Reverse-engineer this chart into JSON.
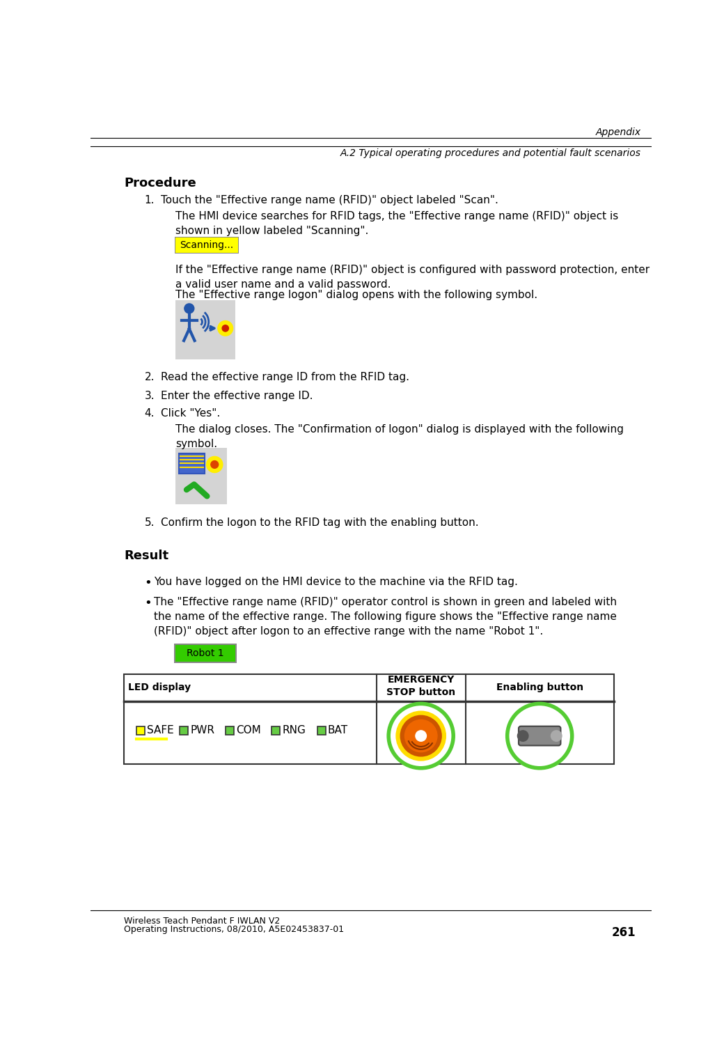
{
  "header_line1": "Appendix",
  "header_line2": "A.2 Typical operating procedures and potential fault scenarios",
  "footer_line1": "Wireless Teach Pendant F IWLAN V2",
  "footer_line2": "Operating Instructions, 08/2010, A5E02453837-01",
  "footer_page": "261",
  "section_procedure": "Procedure",
  "section_result": "Result",
  "step1": "Touch the \"Effective range name (RFID)\" object labeled \"Scan\".",
  "step1_desc": "The HMI device searches for RFID tags, the \"Effective range name (RFID)\" object is\nshown in yellow labeled \"Scanning\".",
  "scanning_label": "Scanning...",
  "step1_desc2": "If the \"Effective range name (RFID)\" object is configured with password protection, enter\na valid user name and a valid password.",
  "step1_desc3": "The \"Effective range logon\" dialog opens with the following symbol.",
  "step2": "Read the effective range ID from the RFID tag.",
  "step3": "Enter the effective range ID.",
  "step4": "Click \"Yes\".",
  "step4_desc": "The dialog closes. The \"Confirmation of logon\" dialog is displayed with the following\nsymbol.",
  "step5": "Confirm the logon to the RFID tag with the enabling button.",
  "result1": "You have logged on the HMI device to the machine via the RFID tag.",
  "result2": "The \"Effective range name (RFID)\" operator control is shown in green and labeled with\nthe name of the effective range. The following figure shows the \"Effective range name\n(RFID)\" object after logon to an effective range with the name \"Robot 1\".",
  "robot_label": "Robot 1",
  "table_col1": "LED display",
  "table_col2": "EMERGENCY\nSTOP button",
  "table_col3": "Enabling button",
  "led_labels": [
    "SAFE",
    "PWR",
    "COM",
    "RNG",
    "BAT"
  ],
  "led_colors": [
    "#ffff00",
    "#66cc44",
    "#66cc44",
    "#66cc44",
    "#66cc44"
  ],
  "bg_color": "#ffffff",
  "text_color": "#000000"
}
